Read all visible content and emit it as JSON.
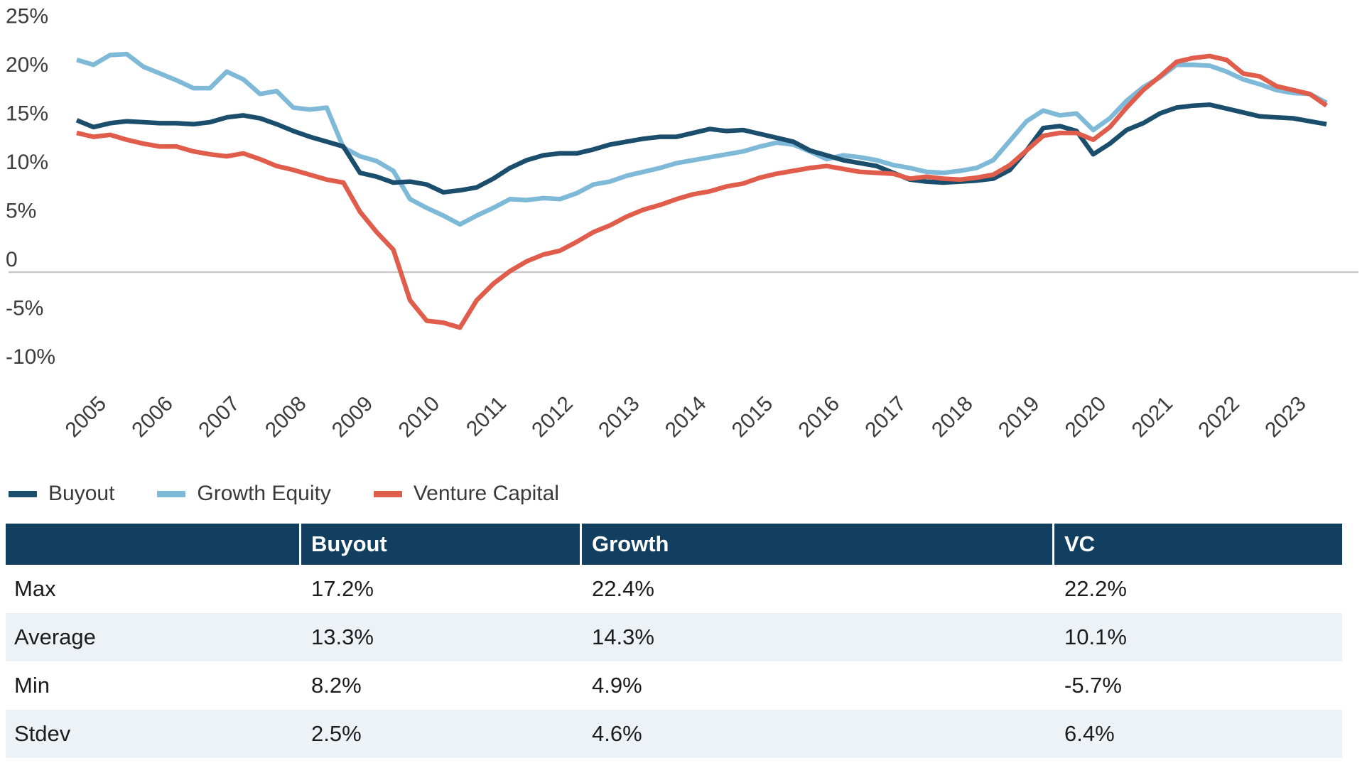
{
  "chart_data": {
    "type": "line",
    "x_axis": {
      "categories": [
        "2005",
        "2006",
        "2007",
        "2008",
        "2009",
        "2010",
        "2011",
        "2012",
        "2013",
        "2014",
        "2015",
        "2016",
        "2017",
        "2018",
        "2019",
        "2020",
        "2021",
        "2022",
        "2023"
      ],
      "points_per_category": 4,
      "frequency": "quarterly"
    },
    "y_axis": {
      "unit": "percent",
      "range": [
        -10,
        25
      ],
      "ticks": [
        {
          "value": 25,
          "label": "25%"
        },
        {
          "value": 20,
          "label": "20%"
        },
        {
          "value": 15,
          "label": "15%"
        },
        {
          "value": 10,
          "label": "10%"
        },
        {
          "value": 5,
          "label": "5%"
        },
        {
          "value": 0,
          "label": "0"
        },
        {
          "value": -5,
          "label": "-5%"
        },
        {
          "value": -10,
          "label": "-10%"
        }
      ]
    },
    "grid": "zero-line-only",
    "legend_position": "bottom-left",
    "colors": {
      "zero_line": "#c9c9c9"
    },
    "series": [
      {
        "id": "buyout",
        "name": "Buyout",
        "color": "#1b4d6d",
        "values": [
          15.6,
          14.9,
          15.3,
          15.5,
          15.4,
          15.3,
          15.3,
          15.2,
          15.4,
          15.9,
          16.1,
          15.8,
          15.2,
          14.5,
          13.9,
          13.4,
          12.9,
          10.2,
          9.8,
          9.2,
          9.3,
          9.0,
          8.2,
          8.4,
          8.7,
          9.6,
          10.7,
          11.5,
          12.0,
          12.2,
          12.2,
          12.6,
          13.1,
          13.4,
          13.7,
          13.9,
          13.9,
          14.3,
          14.7,
          14.5,
          14.6,
          14.2,
          13.8,
          13.4,
          12.5,
          12.0,
          11.5,
          11.2,
          10.9,
          10.2,
          9.5,
          9.3,
          9.2,
          9.3,
          9.4,
          9.6,
          10.5,
          12.5,
          14.8,
          15.0,
          14.5,
          12.1,
          13.2,
          14.6,
          15.3,
          16.3,
          16.9,
          17.1,
          17.2,
          16.8,
          16.4,
          16.0,
          15.9,
          15.8,
          15.5,
          15.2
        ]
      },
      {
        "id": "growth-equity",
        "name": "Growth Equity",
        "color": "#7fb9d8",
        "values": [
          21.8,
          21.3,
          22.3,
          22.4,
          21.1,
          20.4,
          19.7,
          18.9,
          18.9,
          20.6,
          19.8,
          18.3,
          18.6,
          16.9,
          16.7,
          16.9,
          12.8,
          11.9,
          11.4,
          10.4,
          7.5,
          6.6,
          5.8,
          4.9,
          5.8,
          6.6,
          7.5,
          7.4,
          7.6,
          7.5,
          8.1,
          9.0,
          9.3,
          9.9,
          10.3,
          10.7,
          11.2,
          11.5,
          11.8,
          12.1,
          12.4,
          12.9,
          13.3,
          13.1,
          12.4,
          11.6,
          12.0,
          11.8,
          11.5,
          11.0,
          10.7,
          10.3,
          10.2,
          10.4,
          10.7,
          11.5,
          13.5,
          15.5,
          16.6,
          16.1,
          16.3,
          14.6,
          15.8,
          17.6,
          19.0,
          20.0,
          21.3,
          21.3,
          21.2,
          20.6,
          19.8,
          19.3,
          18.7,
          18.4,
          18.3,
          17.4
        ]
      },
      {
        "id": "venture-capital",
        "name": "Venture Capital",
        "color": "#e05c4b",
        "values": [
          14.3,
          13.9,
          14.1,
          13.6,
          13.2,
          12.9,
          12.9,
          12.4,
          12.1,
          11.9,
          12.2,
          11.6,
          10.9,
          10.5,
          10.0,
          9.5,
          9.2,
          6.2,
          4.1,
          2.3,
          -2.9,
          -5.0,
          -5.2,
          -5.7,
          -2.9,
          -1.2,
          0.1,
          1.1,
          1.8,
          2.2,
          3.1,
          4.1,
          4.8,
          5.7,
          6.4,
          6.9,
          7.5,
          8.0,
          8.3,
          8.8,
          9.1,
          9.7,
          10.1,
          10.4,
          10.7,
          10.9,
          10.6,
          10.3,
          10.2,
          10.1,
          9.6,
          9.8,
          9.6,
          9.5,
          9.7,
          10.0,
          11.0,
          12.5,
          14.0,
          14.3,
          14.3,
          13.6,
          14.9,
          16.9,
          18.7,
          20.1,
          21.6,
          22.0,
          22.2,
          21.8,
          20.4,
          20.1,
          19.1,
          18.7,
          18.3,
          17.1
        ]
      }
    ]
  },
  "table": {
    "header_bg": "#123f5f",
    "alt_row_bg": "#edf2f7",
    "columns": [
      "",
      "Buyout",
      "Growth",
      "VC"
    ],
    "rows": [
      {
        "label": "Max",
        "values": [
          "17.2%",
          "22.4%",
          "22.2%"
        ]
      },
      {
        "label": "Average",
        "values": [
          "13.3%",
          "14.3%",
          "10.1%"
        ]
      },
      {
        "label": "Min",
        "values": [
          "8.2%",
          "4.9%",
          "-5.7%"
        ]
      },
      {
        "label": "Stdev",
        "values": [
          "2.5%",
          "4.6%",
          "6.4%"
        ]
      }
    ]
  }
}
